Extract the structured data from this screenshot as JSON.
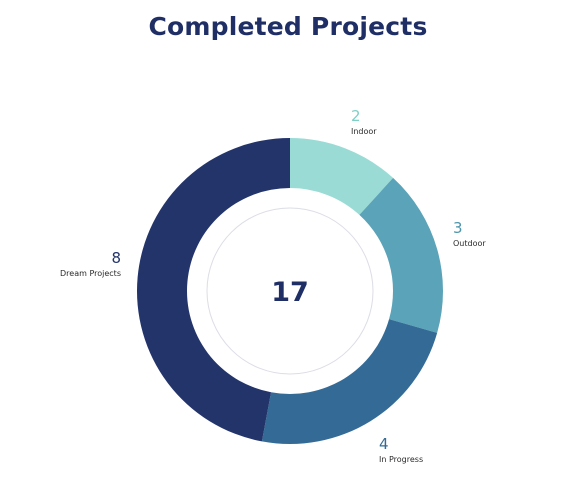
{
  "chart_data": {
    "type": "donut",
    "title": "Completed Projects",
    "total": "17",
    "slices": [
      {
        "label": "Indoor",
        "value": 2,
        "color": "#9adcd5"
      },
      {
        "label": "Outdoor",
        "value": 3,
        "color": "#5ba3b8"
      },
      {
        "label": "In Progress",
        "value": 4,
        "color": "#336b96"
      },
      {
        "label": "Dream Projects",
        "value": 8,
        "color": "#23346b"
      }
    ]
  },
  "colors": {
    "title": "#1f2f66",
    "center_text": "#1f2f66",
    "inner_ring": "#dcdde6"
  }
}
